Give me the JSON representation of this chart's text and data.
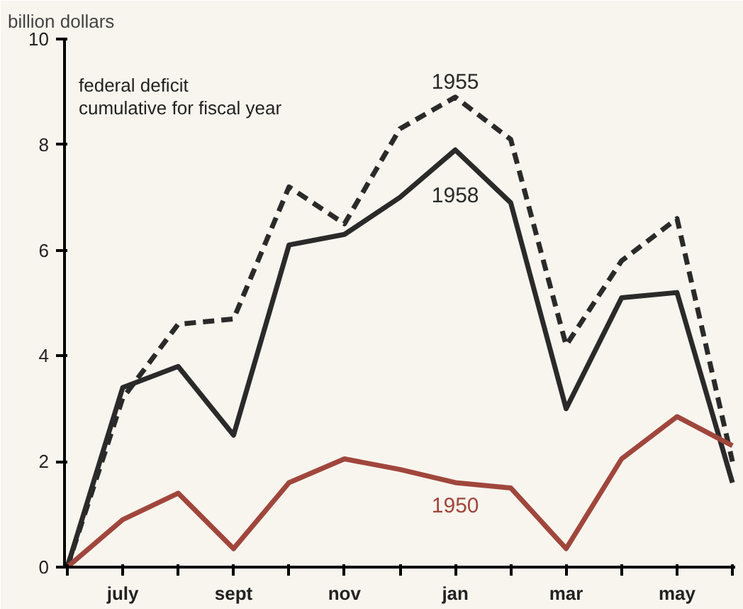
{
  "chart_data": {
    "type": "line",
    "title": "federal deficit\ncumulative for fiscal year",
    "ylabel": "billion dollars",
    "categories": [
      null,
      "july",
      null,
      "sept",
      null,
      "nov",
      null,
      "jan",
      null,
      "mar",
      null,
      "may",
      null
    ],
    "ylim": [
      0,
      10
    ],
    "yticks": [
      0,
      2,
      4,
      6,
      8,
      10
    ],
    "grid": false,
    "legend": false,
    "series": [
      {
        "name": "1955",
        "color": "#2a2a2a",
        "line_style": "dashed",
        "values": [
          0,
          3.2,
          4.6,
          4.7,
          7.2,
          6.5,
          8.3,
          8.9,
          8.1,
          4.2,
          5.8,
          6.6,
          2.0
        ]
      },
      {
        "name": "1958",
        "color": "#2a2a2a",
        "line_style": "solid",
        "values": [
          0,
          3.4,
          3.8,
          2.5,
          6.1,
          6.3,
          7.0,
          7.9,
          6.9,
          3.0,
          5.1,
          5.2,
          1.6
        ]
      },
      {
        "name": "1950",
        "color": "#a0463c",
        "line_style": "solid",
        "values": [
          0,
          0.9,
          1.4,
          0.35,
          1.6,
          2.05,
          1.85,
          1.6,
          1.5,
          0.35,
          2.05,
          2.85,
          2.3
        ]
      }
    ]
  }
}
